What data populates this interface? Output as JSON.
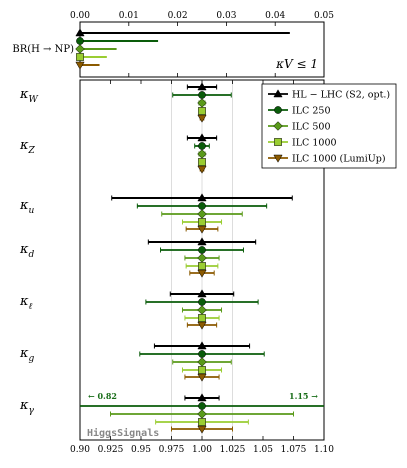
{
  "chart_data": [
    {
      "type": "errorbar-horizontal",
      "panel": "top",
      "row_label": "BR(H → NP)",
      "annotation": "κV ≤ 1",
      "xlim": [
        0,
        0.05
      ],
      "xticks": [
        "0.00",
        "0.01",
        "0.02",
        "0.03",
        "0.04",
        "0.05"
      ],
      "values": [
        {
          "series": "HL − LHC (S2, opt.)",
          "upper": 0.043
        },
        {
          "series": "ILC 250",
          "upper": 0.016
        },
        {
          "series": "ILC 500",
          "upper": 0.0075
        },
        {
          "series": "ILC 1000",
          "upper": 0.0055
        },
        {
          "series": "ILC 1000 (LumiUp)",
          "upper": 0.004
        }
      ]
    },
    {
      "type": "errorbar-horizontal",
      "panel": "bottom",
      "xlim": [
        0.9,
        1.1
      ],
      "xticks": [
        "0.90",
        "0.925",
        "0.95",
        "0.975",
        "1.00",
        "1.025",
        "1.05",
        "1.075",
        "1.10"
      ],
      "central": 1.0,
      "series": [
        {
          "name": "HL − LHC (S2, opt.)",
          "color": "#000000",
          "marker": "triangle-up"
        },
        {
          "name": "ILC 250",
          "color": "#0a5c0a",
          "marker": "circle"
        },
        {
          "name": "ILC 500",
          "color": "#5a9a1a",
          "marker": "diamond"
        },
        {
          "name": "ILC 1000",
          "color": "#9acd32",
          "marker": "square"
        },
        {
          "name": "ILC 1000 (LumiUp)",
          "color": "#8b5a00",
          "marker": "triangle-down"
        }
      ],
      "parameters": [
        {
          "label": "κW",
          "sym": "κ",
          "sub": "W",
          "errors": [
            0.012,
            0.024,
            0.0025,
            0.0025,
            0.0015
          ]
        },
        {
          "label": "κZ",
          "sym": "κ",
          "sub": "Z",
          "errors": [
            0.012,
            0.006,
            0.0025,
            0.0025,
            0.0015
          ]
        },
        {
          "label": "κu",
          "sym": "κ",
          "sub": "u",
          "errors": [
            0.074,
            0.053,
            0.033,
            0.016,
            0.013
          ]
        },
        {
          "label": "κd",
          "sym": "κ",
          "sub": "d",
          "errors": [
            0.044,
            0.034,
            0.014,
            0.013,
            0.01
          ]
        },
        {
          "label": "κℓ",
          "sym": "κ",
          "sub": "ℓ",
          "errors": [
            0.026,
            0.046,
            0.016,
            0.014,
            0.012
          ]
        },
        {
          "label": "κg",
          "sym": "κ",
          "sub": "g",
          "errors": [
            0.039,
            0.051,
            0.024,
            0.016,
            0.014
          ]
        },
        {
          "label": "κγ",
          "sym": "κ",
          "sub": "γ",
          "errors": [
            0.014,
            0.18,
            0.075,
            0.038,
            0.025
          ]
        }
      ],
      "annotations": {
        "left": "← 0.82",
        "right": "1.15 →"
      },
      "watermark": "HiggsSignals"
    }
  ]
}
